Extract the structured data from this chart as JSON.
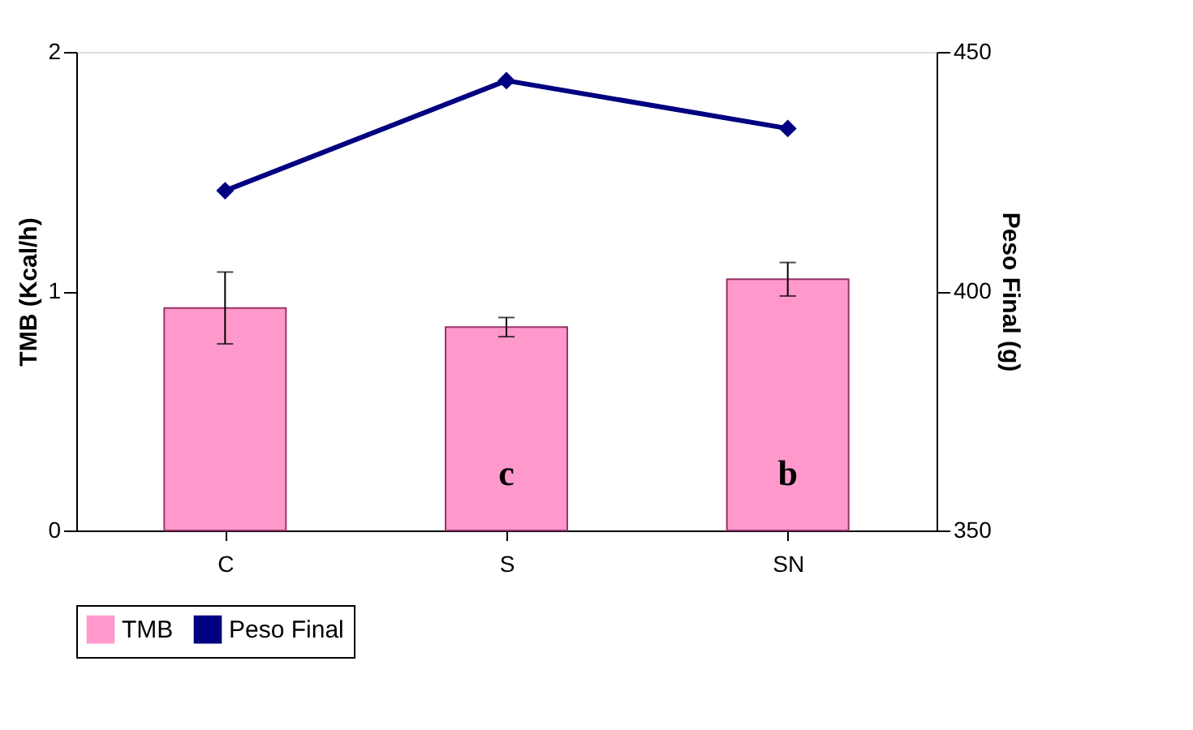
{
  "chart_data": {
    "type": "bar",
    "categories": [
      "C",
      "S",
      "SN"
    ],
    "series": [
      {
        "name": "TMB",
        "color": "#ff99cc",
        "values": [
          0.93,
          0.85,
          1.05
        ],
        "errors": [
          0.15,
          0.04,
          0.07
        ]
      },
      {
        "name": "Peso Final",
        "type": "line",
        "axis": "y2",
        "color": "#000080",
        "values": [
          421,
          444,
          434
        ],
        "marker": "diamond"
      }
    ],
    "ylabel": "TMB (Kcal/h)",
    "y2label": "Peso Final (g)",
    "ylim": [
      0,
      2
    ],
    "yticks": [
      {
        "value": 0,
        "label": "0"
      },
      {
        "value": 1,
        "label": "1"
      },
      {
        "value": 2,
        "label": "2"
      }
    ],
    "y2lim": [
      350,
      450
    ],
    "y2ticks": [
      350,
      400,
      450
    ],
    "annotations": [
      "c",
      "b"
    ],
    "grid": false,
    "legend": "bottom"
  }
}
